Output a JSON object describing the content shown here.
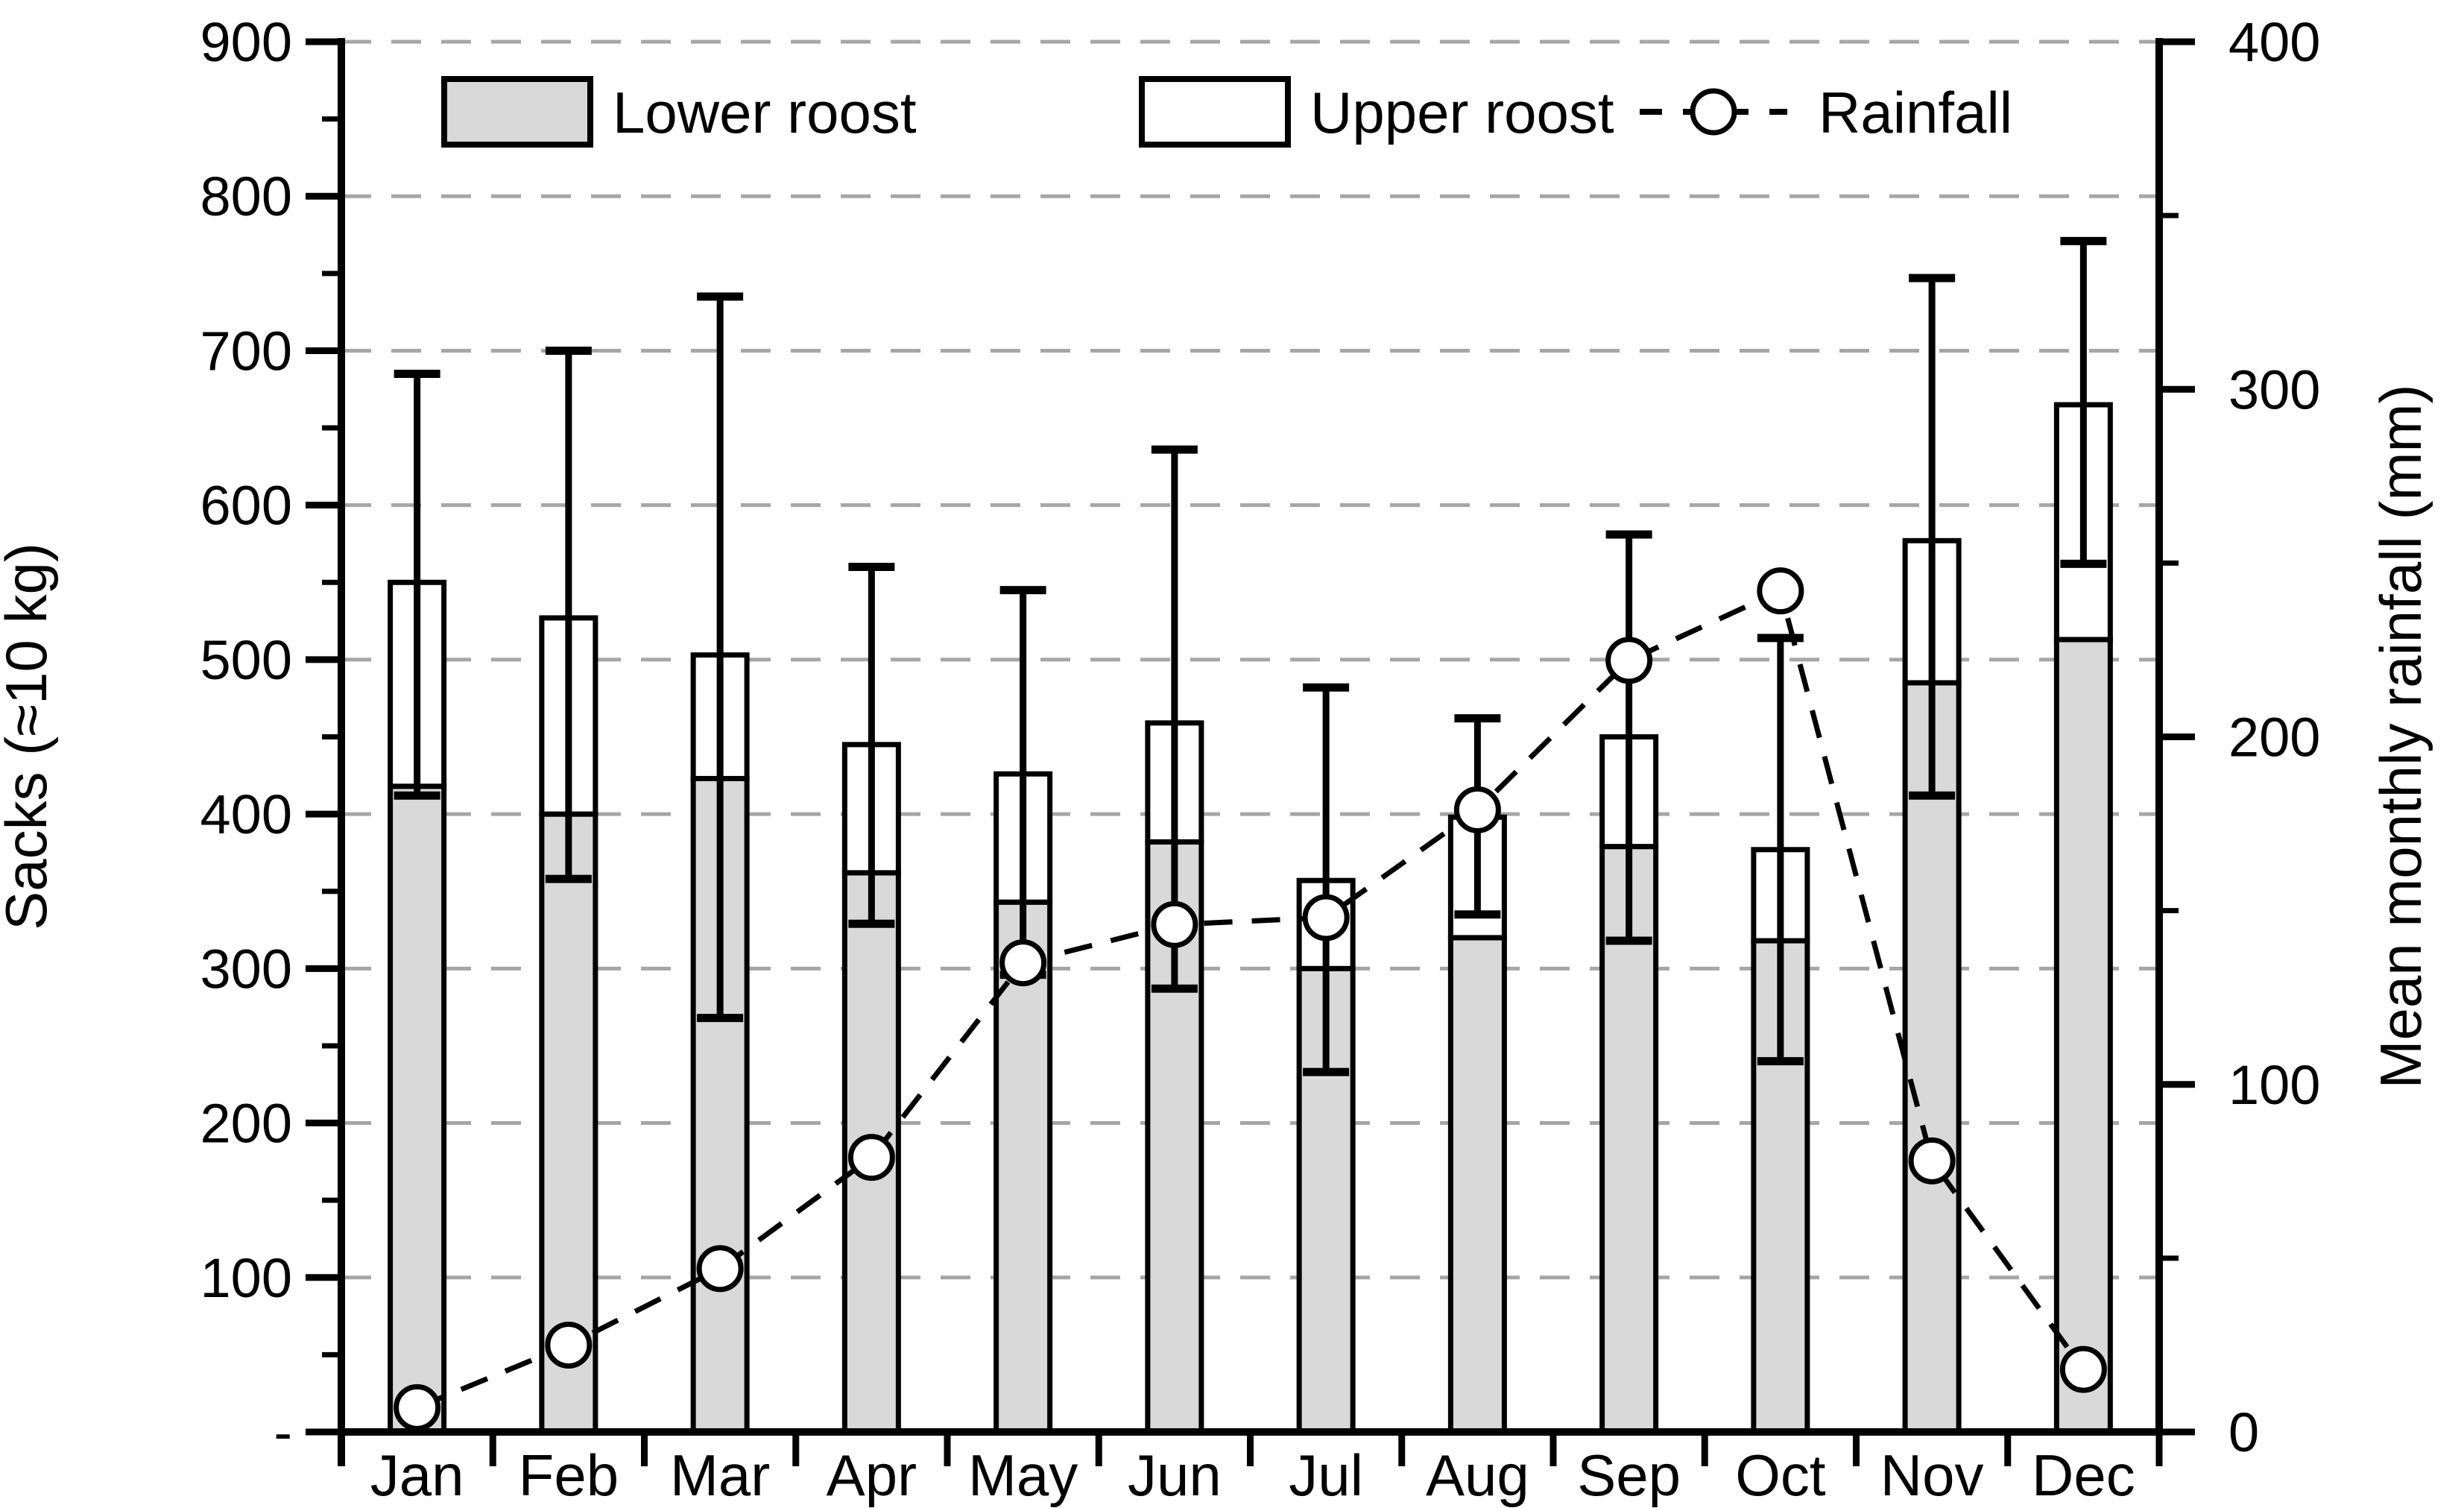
{
  "chart_data": {
    "type": "bar",
    "subtype": "stacked-bar-with-error-bars-plus-dashed-line",
    "title": "",
    "categories": [
      "Jan",
      "Feb",
      "Mar",
      "Apr",
      "May",
      "Jun",
      "Jul",
      "Aug",
      "Sep",
      "Oct",
      "Nov",
      "Dec"
    ],
    "series": [
      {
        "name": "Lower roost",
        "type": "bar",
        "stack": "roost",
        "axis": "left",
        "fill": "#d9d9d9",
        "values": [
          418,
          400,
          423,
          362,
          343,
          382,
          300,
          320,
          379,
          318,
          485,
          513
        ]
      },
      {
        "name": "Upper roost",
        "type": "bar",
        "stack": "roost",
        "axis": "left",
        "fill": "#ffffff",
        "values": [
          132,
          127,
          80,
          83,
          83,
          77,
          57,
          78,
          71,
          59,
          92,
          152
        ]
      },
      {
        "name": "Rainfall",
        "type": "line",
        "axis": "right",
        "line_style": "dashed",
        "marker": "open-circle",
        "values": [
          7,
          25,
          47,
          79,
          135,
          146,
          148,
          179,
          222,
          242,
          78,
          18
        ]
      }
    ],
    "stack_totals": [
      550,
      527,
      503,
      445,
      426,
      459,
      357,
      398,
      450,
      377,
      577,
      665
    ],
    "error_bars": {
      "centered_on": "stack_total",
      "low": [
        412,
        358,
        268,
        329,
        296,
        287,
        233,
        335,
        318,
        240,
        412,
        562
      ],
      "high": [
        685,
        700,
        735,
        560,
        545,
        636,
        482,
        462,
        581,
        514,
        747,
        771
      ]
    },
    "left_axis": {
      "title": "Sacks (≈10 kg)",
      "min": 0,
      "max": 900,
      "major_step": 100,
      "minor_step": 50,
      "tick_labels": [
        "900",
        "800",
        "700",
        "600",
        "500",
        "400",
        "300",
        "200",
        "100",
        "-"
      ]
    },
    "right_axis": {
      "title": "Mean monthly rainfall (mm)",
      "min": 0,
      "max": 400,
      "major_step": 100,
      "minor_step": 50,
      "tick_labels": [
        "400",
        "300",
        "200",
        "100",
        "0"
      ]
    },
    "legend": {
      "position": "top-inside",
      "items": [
        "Lower roost",
        "Upper roost",
        "Rainfall"
      ]
    },
    "grid": {
      "horizontal": true,
      "style": "dashed",
      "color": "#a6a6a6"
    },
    "colors": {
      "bar_lower_fill": "#d9d9d9",
      "bar_upper_fill": "#ffffff",
      "stroke": "#000000",
      "background": "#ffffff"
    }
  }
}
